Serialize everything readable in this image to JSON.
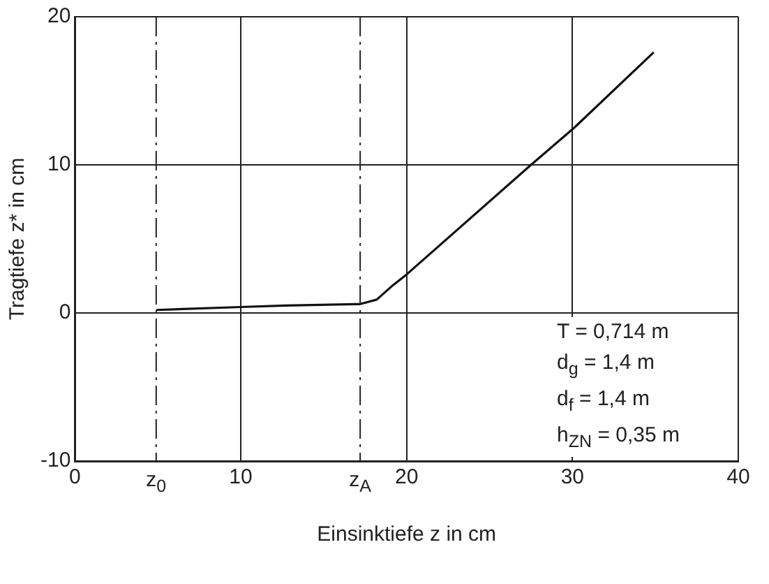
{
  "chart_data": {
    "type": "line",
    "xlabel": "Einsinktiefe z in cm",
    "ylabel": "Tragtiefe z* in cm",
    "x": [
      4.9,
      10,
      12.7,
      17.2,
      18.2,
      19.1,
      20,
      27.5,
      30.1,
      34.9
    ],
    "series": [
      {
        "color": "#111111",
        "values": [
          0.2,
          0.4,
          0.5,
          0.6,
          0.9,
          1.8,
          2.6,
          10,
          12.5,
          17.6
        ]
      }
    ],
    "xlim": [
      0,
      40
    ],
    "xticks": [
      0,
      10,
      20,
      30,
      40
    ],
    "ylim": [
      -10,
      20
    ],
    "yticks": [
      -10,
      0,
      10,
      20
    ],
    "ref_lines": [
      {
        "axis": "x",
        "value": 4.9,
        "label": "z$_{0}$",
        "line_style": "dashdot"
      },
      {
        "axis": "x",
        "value": 17.2,
        "label": "z$_{A}$",
        "line_style": "dashdot"
      }
    ],
    "annotations": [
      "T = 0,714 m",
      "d$_{g}$ = 1,4 m",
      "d$_{f}$ = 1,4 m",
      "h$_{ZN}$ = 0,35 m"
    ],
    "grid": true,
    "legend": false,
    "marker": "none",
    "line_style": "solid"
  }
}
